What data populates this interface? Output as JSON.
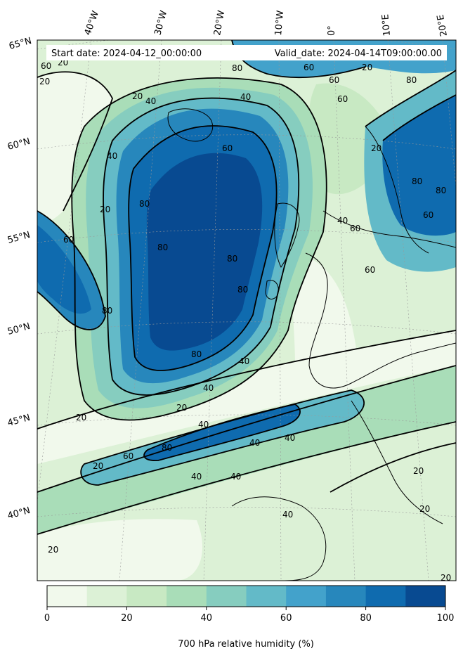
{
  "header": {
    "start_date": "Start date: 2024-04-12_00:00:00",
    "valid_date": "Valid_date: 2024-04-14T09:00:00.00"
  },
  "latitude_labels": [
    "65°N",
    "60°N",
    "55°N",
    "50°N",
    "45°N",
    "40°N"
  ],
  "longitude_labels": [
    "40°W",
    "30°W",
    "20°W",
    "10°W",
    "0°",
    "10°E",
    "20°E"
  ],
  "contour_labels": [
    "20",
    "40",
    "60",
    "80"
  ],
  "colorbar": {
    "title": "700 hPa relative humidity (%)",
    "ticks": [
      "0",
      "20",
      "40",
      "60",
      "80",
      "100"
    ],
    "range": [
      0,
      100
    ],
    "step": 10,
    "colors": [
      "#f1f9ec",
      "#dcf1d6",
      "#c8e9c3",
      "#a9ddb8",
      "#86cdbf",
      "#63bac8",
      "#43a2cb",
      "#2787bc",
      "#0f6baf",
      "#084a91"
    ]
  },
  "chart_data": {
    "type": "heatmap",
    "title": "",
    "variable": "700 hPa relative humidity (%)",
    "levels": [
      0,
      10,
      20,
      30,
      40,
      50,
      60,
      70,
      80,
      90,
      100
    ],
    "contour_levels": [
      20,
      40,
      60,
      80
    ],
    "legend": "bottom colorbar"
  }
}
